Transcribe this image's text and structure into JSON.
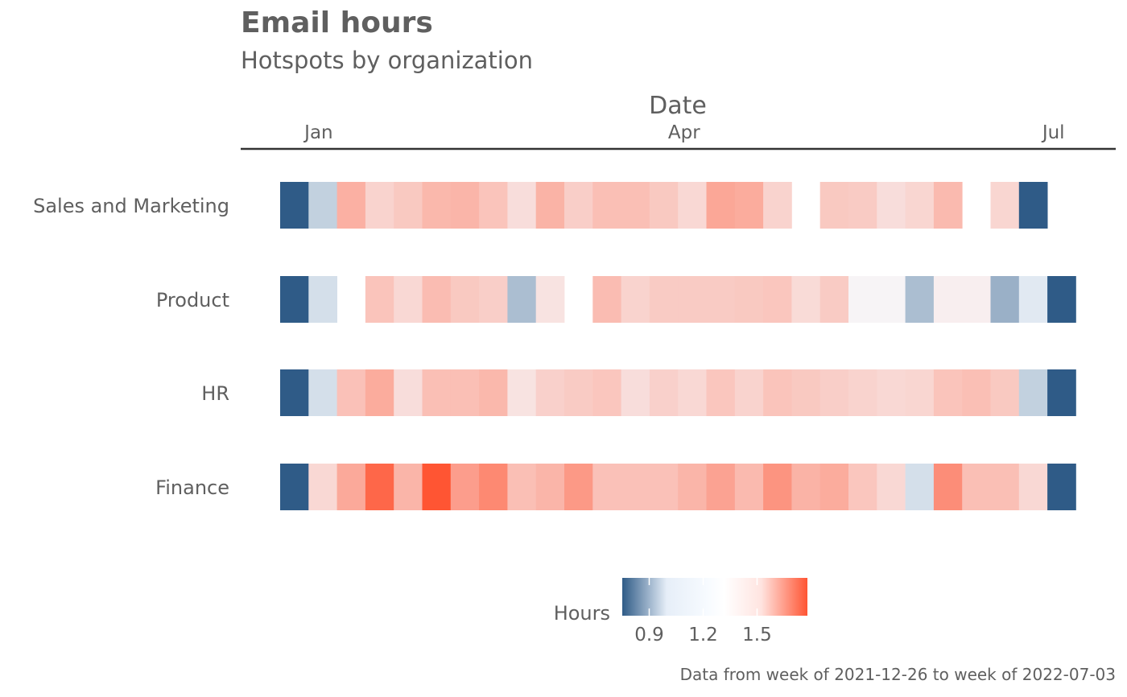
{
  "title": "Email hours",
  "subtitle": "Hotspots by organization",
  "caption": "Data from week of 2021-12-26 to week of 2022-07-03",
  "colors": {
    "low": "#2f5b87",
    "mid": "#f7fbff",
    "high": "#ff5533",
    "text": "#5f5f5f",
    "axis": "#333333"
  },
  "chart_data": {
    "type": "heatmap",
    "title": "Email hours",
    "subtitle": "Hotspots by organization",
    "xlabel": "Date",
    "ylabel": "",
    "x_axis_position": "top",
    "x_ticks": [
      {
        "label": "Jan",
        "date": "2022-01-01"
      },
      {
        "label": "Apr",
        "date": "2022-04-01"
      },
      {
        "label": "Jul",
        "date": "2022-07-01"
      }
    ],
    "x": [
      "2021-12-26",
      "2022-01-02",
      "2022-01-09",
      "2022-01-16",
      "2022-01-23",
      "2022-01-30",
      "2022-02-06",
      "2022-02-13",
      "2022-02-20",
      "2022-02-27",
      "2022-03-06",
      "2022-03-13",
      "2022-03-20",
      "2022-03-27",
      "2022-04-03",
      "2022-04-10",
      "2022-04-17",
      "2022-04-24",
      "2022-05-01",
      "2022-05-08",
      "2022-05-15",
      "2022-05-22",
      "2022-05-29",
      "2022-06-05",
      "2022-06-12",
      "2022-06-19",
      "2022-06-26",
      "2022-07-03"
    ],
    "y": [
      "Sales and Marketing",
      "Product",
      "HR",
      "Finance"
    ],
    "values": [
      [
        0.7,
        1.02,
        1.38,
        1.24,
        1.28,
        1.35,
        1.36,
        1.3,
        1.2,
        1.37,
        1.26,
        1.32,
        1.32,
        1.28,
        1.22,
        1.42,
        1.4,
        1.24,
        null,
        1.28,
        1.27,
        1.2,
        1.23,
        1.34,
        null,
        1.23,
        0.55,
        null
      ],
      [
        0.2,
        1.05,
        null,
        1.3,
        1.22,
        1.33,
        1.28,
        1.26,
        0.98,
        1.18,
        null,
        1.33,
        1.24,
        1.27,
        1.27,
        1.27,
        1.28,
        1.29,
        1.21,
        1.27,
        1.12,
        1.12,
        0.98,
        1.14,
        1.14,
        0.95,
        1.07,
        0.45
      ],
      [
        0.3,
        1.05,
        1.31,
        1.4,
        1.2,
        1.32,
        1.32,
        1.35,
        1.18,
        1.25,
        1.27,
        1.29,
        1.2,
        1.25,
        1.22,
        1.29,
        1.24,
        1.3,
        1.28,
        1.26,
        1.24,
        1.22,
        1.23,
        1.3,
        1.32,
        1.28,
        1.02,
        0.58
      ],
      [
        0.62,
        1.22,
        1.41,
        1.7,
        1.36,
        1.8,
        1.46,
        1.55,
        1.32,
        1.36,
        1.48,
        1.31,
        1.31,
        1.31,
        1.36,
        1.44,
        1.34,
        1.5,
        1.37,
        1.4,
        1.29,
        1.22,
        1.05,
        1.53,
        1.32,
        1.32,
        1.22,
        0.72
      ]
    ],
    "legend": {
      "title": "Hours",
      "ticks": [
        0.9,
        1.2,
        1.5
      ],
      "range": [
        0.75,
        1.78
      ],
      "position": "bottom"
    }
  }
}
